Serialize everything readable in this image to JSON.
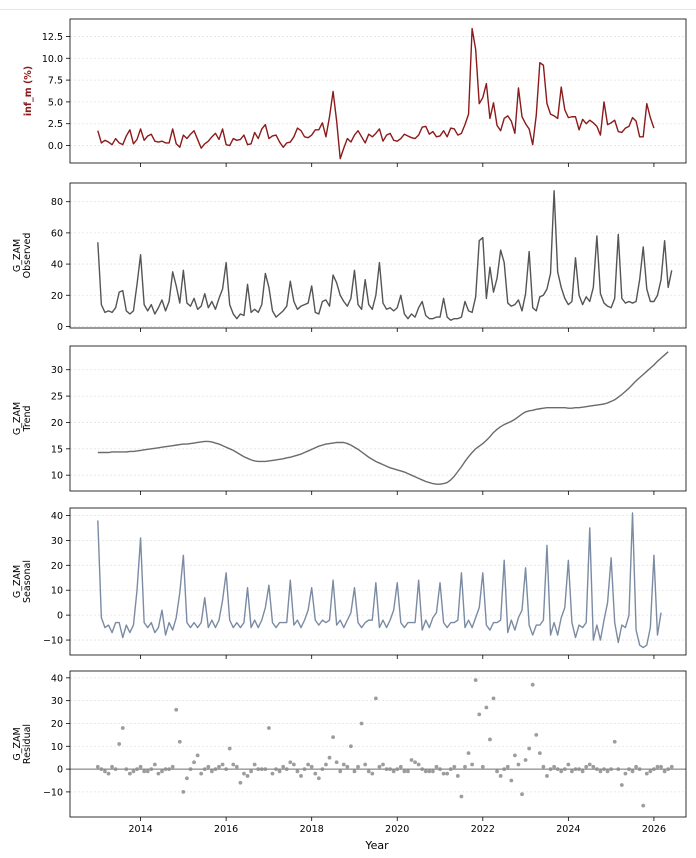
{
  "chart_data": {
    "type": "line",
    "x_axis": {
      "label": "Year",
      "range": [
        2012.35,
        2026.75
      ],
      "ticks": [
        2014,
        2016,
        2018,
        2020,
        2022,
        2024,
        2026
      ],
      "tick_labels": [
        "2014",
        "2016",
        "2018",
        "2020",
        "2022",
        "2024",
        "2026"
      ]
    },
    "x_start": 2013.0,
    "x_step_months": 1,
    "panels": [
      {
        "name": "inf_m",
        "ylabel": "inf_m (%)",
        "mark": "line",
        "color": "#8b1a1a",
        "ylim": [
          -2.0,
          14.5
        ],
        "yticks": [
          0.0,
          2.5,
          5.0,
          7.5,
          10.0,
          12.5
        ],
        "ytick_labels": [
          "0.0",
          "2.5",
          "5.0",
          "7.5",
          "10.0",
          "12.5"
        ],
        "values": [
          1.7,
          0.3,
          0.6,
          0.4,
          0.1,
          0.8,
          0.3,
          0.1,
          1.1,
          1.8,
          0.2,
          0.7,
          1.9,
          0.6,
          1.1,
          1.3,
          0.5,
          0.4,
          0.5,
          0.3,
          0.3,
          1.9,
          0.2,
          -0.2,
          1.2,
          0.8,
          1.3,
          1.7,
          0.7,
          -0.3,
          0.2,
          0.5,
          1.0,
          1.4,
          0.7,
          1.9,
          0.1,
          0.0,
          0.8,
          0.6,
          0.7,
          1.2,
          0.1,
          0.2,
          1.5,
          0.8,
          1.9,
          2.4,
          0.8,
          1.1,
          1.2,
          0.4,
          -0.2,
          0.3,
          0.4,
          1.0,
          2.0,
          1.7,
          1.0,
          0.9,
          1.2,
          1.8,
          1.8,
          2.6,
          1.0,
          3.3,
          6.2,
          2.8,
          -1.5,
          -0.3,
          0.8,
          0.4,
          1.2,
          1.7,
          1.0,
          0.3,
          1.3,
          1.0,
          1.4,
          1.9,
          0.5,
          1.2,
          1.4,
          0.6,
          0.5,
          0.8,
          1.3,
          1.1,
          0.9,
          0.8,
          1.2,
          2.1,
          2.2,
          1.3,
          1.6,
          1.0,
          1.1,
          1.7,
          1.0,
          2.0,
          1.9,
          1.2,
          1.4,
          2.4,
          3.6,
          13.4,
          11.0,
          4.8,
          5.5,
          7.1,
          3.1,
          4.9,
          2.3,
          1.7,
          3.1,
          3.4,
          2.8,
          1.4,
          6.6,
          3.3,
          2.5,
          1.9,
          0.1,
          3.5,
          9.5,
          9.2,
          4.8,
          3.6,
          3.4,
          3.1,
          6.7,
          4.1,
          3.2,
          3.3,
          3.3,
          1.8,
          3.0,
          2.5,
          2.9,
          2.6,
          2.2,
          1.2,
          5.0,
          2.4,
          2.6,
          2.9,
          1.6,
          1.5,
          2.0,
          2.2,
          3.2,
          2.8,
          1.0,
          1.0,
          4.8,
          3.2,
          2.0
        ]
      },
      {
        "name": "observed",
        "ylabel": "G_ZAM\nObserved",
        "mark": "line",
        "color": "#555555",
        "ylim": [
          -1.0,
          92.0
        ],
        "yticks": [
          0,
          20,
          40,
          60,
          80
        ],
        "ytick_labels": [
          "0",
          "20",
          "40",
          "60",
          "80"
        ],
        "values": [
          54,
          14,
          9,
          10,
          9,
          12,
          22,
          23,
          10,
          8,
          10,
          27,
          46,
          14,
          10,
          14,
          8,
          12,
          17,
          10,
          16,
          35,
          26,
          15,
          36,
          15,
          13,
          18,
          11,
          13,
          21,
          12,
          16,
          11,
          18,
          24,
          41,
          14,
          8,
          5,
          8,
          7,
          27,
          9,
          11,
          9,
          14,
          34,
          25,
          10,
          6,
          8,
          10,
          13,
          29,
          16,
          11,
          13,
          14,
          15,
          26,
          9,
          8,
          16,
          17,
          13,
          33,
          28,
          20,
          16,
          13,
          18,
          36,
          14,
          11,
          30,
          14,
          11,
          20,
          41,
          15,
          11,
          12,
          10,
          12,
          20,
          8,
          5,
          8,
          6,
          12,
          16,
          7,
          5,
          5,
          6,
          6,
          18,
          6,
          4,
          5,
          5,
          6,
          16,
          10,
          9,
          19,
          55,
          57,
          18,
          38,
          22,
          31,
          49,
          41,
          15,
          13,
          14,
          17,
          10,
          21,
          48,
          12,
          10,
          19,
          20,
          24,
          34,
          87,
          35,
          25,
          18,
          14,
          16,
          44,
          20,
          14,
          19,
          16,
          25,
          58,
          21,
          15,
          13,
          12,
          18,
          59,
          18,
          15,
          16,
          15,
          16,
          30,
          51,
          24,
          16,
          16,
          20,
          30,
          55,
          25,
          36
        ]
      },
      {
        "name": "trend",
        "ylabel": "G_ZAM\nTrend",
        "mark": "line",
        "color": "#6b6b6b",
        "ylim": [
          7.0,
          34.5
        ],
        "yticks": [
          10,
          15,
          20,
          25,
          30
        ],
        "ytick_labels": [
          "10",
          "15",
          "20",
          "25",
          "30"
        ],
        "values": [
          14.3,
          14.3,
          14.3,
          14.3,
          14.4,
          14.4,
          14.4,
          14.4,
          14.4,
          14.5,
          14.5,
          14.6,
          14.7,
          14.8,
          14.9,
          15.0,
          15.1,
          15.2,
          15.3,
          15.4,
          15.5,
          15.6,
          15.7,
          15.8,
          15.9,
          15.9,
          16.0,
          16.1,
          16.2,
          16.3,
          16.4,
          16.4,
          16.3,
          16.1,
          15.9,
          15.6,
          15.3,
          15.0,
          14.7,
          14.3,
          13.9,
          13.5,
          13.2,
          12.9,
          12.7,
          12.6,
          12.6,
          12.6,
          12.7,
          12.8,
          12.9,
          13.0,
          13.1,
          13.3,
          13.4,
          13.6,
          13.8,
          14.0,
          14.3,
          14.6,
          14.9,
          15.2,
          15.5,
          15.7,
          15.9,
          16.0,
          16.1,
          16.2,
          16.2,
          16.2,
          16.0,
          15.7,
          15.3,
          14.9,
          14.4,
          13.9,
          13.4,
          13.0,
          12.6,
          12.3,
          12.0,
          11.7,
          11.4,
          11.2,
          11.0,
          10.8,
          10.6,
          10.3,
          10.0,
          9.7,
          9.4,
          9.1,
          8.8,
          8.6,
          8.4,
          8.3,
          8.3,
          8.4,
          8.6,
          9.1,
          9.8,
          10.7,
          11.6,
          12.6,
          13.5,
          14.3,
          15.0,
          15.5,
          16.0,
          16.6,
          17.3,
          18.1,
          18.7,
          19.2,
          19.6,
          19.9,
          20.2,
          20.6,
          21.1,
          21.6,
          22.0,
          22.2,
          22.3,
          22.5,
          22.6,
          22.7,
          22.8,
          22.8,
          22.8,
          22.8,
          22.8,
          22.8,
          22.7,
          22.7,
          22.8,
          22.8,
          22.9,
          23.0,
          23.1,
          23.2,
          23.3,
          23.4,
          23.5,
          23.7,
          24.0,
          24.3,
          24.8,
          25.3,
          25.9,
          26.5,
          27.2,
          27.9,
          28.5,
          29.1,
          29.7,
          30.3,
          30.9,
          31.6,
          32.2,
          32.8,
          33.4
        ]
      },
      {
        "name": "seasonal",
        "ylabel": "G_ZAM\nSeasonal",
        "mark": "line",
        "color": "#7b8ba3",
        "ylim": [
          -16.0,
          43.0
        ],
        "yticks": [
          -10,
          0,
          10,
          20,
          30,
          40
        ],
        "ytick_labels": [
          "−10",
          "0",
          "10",
          "20",
          "30",
          "40"
        ],
        "values": [
          38,
          -1,
          -5,
          -4,
          -7,
          -3,
          -3,
          -9,
          -4,
          -7,
          -4,
          10,
          31,
          -3,
          -5,
          -3,
          -7,
          -5,
          2,
          -8,
          -3,
          -6,
          -1,
          9,
          24,
          -3,
          -5,
          -3,
          -5,
          -3,
          7,
          -5,
          -2,
          -5,
          -2,
          6,
          17,
          -2,
          -5,
          -3,
          -5,
          -3,
          11,
          -5,
          -2,
          -5,
          -2,
          3,
          12,
          -3,
          -5,
          -3,
          -3,
          -3,
          14,
          -4,
          -2,
          -5,
          -2,
          2,
          11,
          -2,
          -4,
          -2,
          -3,
          -2,
          14,
          -4,
          -2,
          -5,
          -2,
          1,
          11,
          -3,
          -5,
          -3,
          -2,
          -2,
          13,
          -5,
          -2,
          -5,
          -2,
          2,
          13,
          -3,
          -5,
          -3,
          -3,
          -3,
          14,
          -6,
          -2,
          -5,
          -1,
          1,
          13,
          -3,
          -5,
          -3,
          -3,
          -2,
          17,
          -5,
          -2,
          -5,
          -1,
          3,
          17,
          -4,
          -6,
          -3,
          -3,
          -2,
          22,
          -7,
          -2,
          -6,
          -1,
          2,
          19,
          -4,
          -8,
          -4,
          -4,
          -2,
          28,
          -8,
          -3,
          -8,
          -1,
          3,
          22,
          -3,
          -9,
          -4,
          -5,
          -3,
          35,
          -10,
          -4,
          -10,
          -2,
          5,
          23,
          -3,
          -11,
          -4,
          -5,
          0,
          41,
          -6,
          -12,
          -13,
          -12,
          -5,
          24,
          -8,
          1
        ]
      },
      {
        "name": "residual",
        "ylabel": "G_ZAM\nResidual",
        "mark": "scatter",
        "color": "#8c8c8c",
        "baseline": 0,
        "ylim": [
          -21.0,
          43.0
        ],
        "yticks": [
          -10,
          0,
          10,
          20,
          30,
          40
        ],
        "ytick_labels": [
          "−10",
          "0",
          "10",
          "20",
          "30",
          "40"
        ],
        "values": [
          1,
          0,
          -1,
          -2,
          1,
          0,
          11,
          18,
          0,
          -2,
          -1,
          0,
          1,
          -1,
          -1,
          0,
          2,
          -2,
          -1,
          0,
          0,
          1,
          26,
          12,
          -10,
          -4,
          0,
          3,
          6,
          -2,
          0,
          1,
          -1,
          0,
          1,
          2,
          0,
          9,
          2,
          1,
          -6,
          -2,
          -3,
          -1,
          2,
          0,
          0,
          0,
          18,
          -2,
          0,
          -1,
          1,
          0,
          3,
          2,
          -1,
          -3,
          0,
          2,
          1,
          -2,
          -4,
          0,
          2,
          5,
          14,
          3,
          -1,
          2,
          1,
          10,
          -1,
          1,
          20,
          2,
          -1,
          -2,
          31,
          1,
          2,
          0,
          0,
          -1,
          0,
          1,
          -1,
          -1,
          4,
          3,
          2,
          0,
          -1,
          -1,
          -1,
          1,
          0,
          -2,
          -2,
          0,
          1,
          -3,
          -12,
          1,
          7,
          2,
          39,
          24,
          1,
          27,
          13,
          31,
          -1,
          -3,
          0,
          1,
          -5,
          6,
          2,
          -11,
          4,
          9,
          37,
          15,
          7,
          1,
          -3,
          0,
          1,
          0,
          -1,
          0,
          2,
          -1,
          0,
          0,
          -1,
          1,
          2,
          1,
          0,
          -1,
          0,
          -1,
          0,
          12,
          0,
          -7,
          -2,
          0,
          -1,
          1,
          0,
          -16,
          -2,
          -1,
          0,
          1,
          1,
          -1,
          0,
          1
        ]
      }
    ]
  }
}
